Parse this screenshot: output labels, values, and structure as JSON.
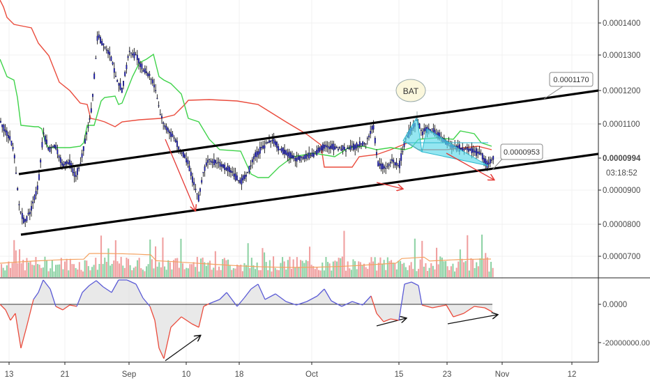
{
  "chart_data": {
    "type": "line",
    "title": "",
    "price_axis": {
      "ticks": [
        "0.0001400",
        "0.0001300",
        "0.0001200",
        "0.0001100",
        "0.0000994",
        "0.0000900",
        "0.0000800",
        "0.0000700"
      ],
      "current_price": "0.0000994",
      "countdown": "03:18:52"
    },
    "oscillator_axis": {
      "ticks": [
        "0.0000",
        "-20000000.0000"
      ]
    },
    "x_axis": {
      "ticks": [
        "13",
        "21",
        "Sep",
        "10",
        "18",
        "Oct",
        "15",
        "23",
        "Nov",
        "12"
      ]
    },
    "callouts": [
      {
        "text": "0.0001170"
      },
      {
        "text": "0.0000953"
      }
    ],
    "pattern_label": "BAT",
    "series": [
      {
        "name": "price",
        "color": "#1c1cc8"
      },
      {
        "color": "#e53935"
      },
      {
        "color": "#2ecc2e"
      }
    ],
    "colors": {
      "channel": "#000000",
      "divergence_arrow": "#e53935",
      "pattern_fill": "#5ad8ea",
      "volume_up": "#8fd3a6",
      "volume_down": "#f0a0a0",
      "oscillator_line": "#5b5bd6"
    }
  }
}
